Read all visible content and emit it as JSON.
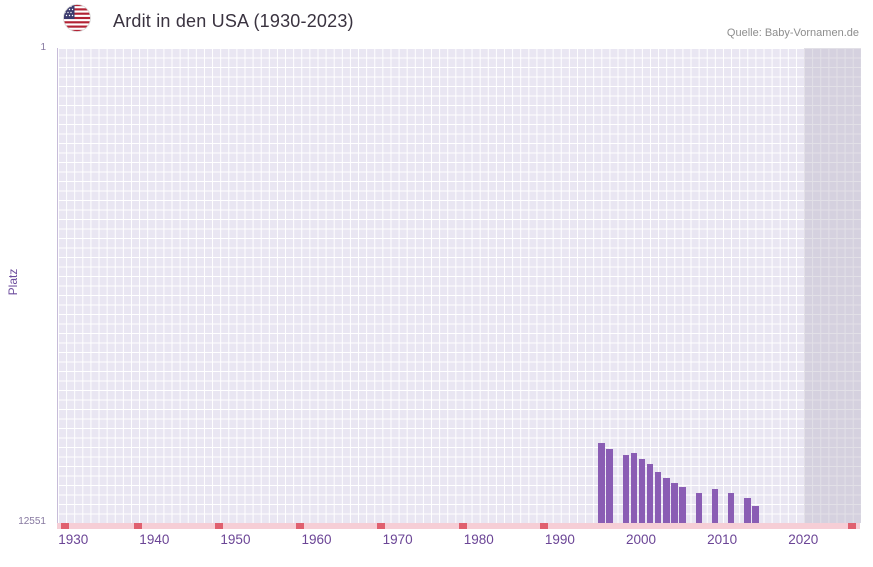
{
  "header": {
    "title": "Ardit in den USA (1930-2023)",
    "source": "Quelle: Baby-Vornamen.de",
    "flag_icon": "us-flag"
  },
  "chart_data": {
    "type": "bar",
    "title": "Ardit in den USA (1930-2023)",
    "xlabel": "",
    "ylabel": "Platz",
    "y_axis": {
      "top_label": "1",
      "bottom_label": "12551",
      "min": 1,
      "max": 12551,
      "inverted": true
    },
    "x_axis": {
      "min": 1928,
      "max": 2027,
      "tick_years": [
        1930,
        1940,
        1950,
        1960,
        1970,
        1980,
        1990,
        2000,
        2010,
        2020
      ]
    },
    "bars": [
      {
        "year": 1995,
        "rank": 10450
      },
      {
        "year": 1996,
        "rank": 10600
      },
      {
        "year": 1998,
        "rank": 10750
      },
      {
        "year": 1999,
        "rank": 10700
      },
      {
        "year": 2000,
        "rank": 10850
      },
      {
        "year": 2001,
        "rank": 11000
      },
      {
        "year": 2002,
        "rank": 11200
      },
      {
        "year": 2003,
        "rank": 11350
      },
      {
        "year": 2004,
        "rank": 11500
      },
      {
        "year": 2005,
        "rank": 11600
      },
      {
        "year": 2007,
        "rank": 11750
      },
      {
        "year": 2009,
        "rank": 11650
      },
      {
        "year": 2011,
        "rank": 11750
      },
      {
        "year": 2013,
        "rank": 11900
      },
      {
        "year": 2014,
        "rank": 12100
      }
    ],
    "shaded_region": {
      "from_year": 2020,
      "to_year": 2027
    },
    "baseline_mark_years": [
      1929,
      1938,
      1948,
      1958,
      1968,
      1978,
      1988,
      2026
    ],
    "grid": true,
    "legend": false,
    "colors": {
      "title": "#3a3340",
      "source": "#8d8d8d",
      "axis_label": "#6d4d9e",
      "axis_tick": "#8678a0",
      "tick_label": "#6b4596",
      "plot_bg": "#e9e6f2",
      "grid": "#ffffff",
      "bar": "#8a5db4",
      "shaded": "rgba(183,178,196,0.40)",
      "baseline": "#f6ced6",
      "baseline_mark": "#e0606f"
    }
  }
}
